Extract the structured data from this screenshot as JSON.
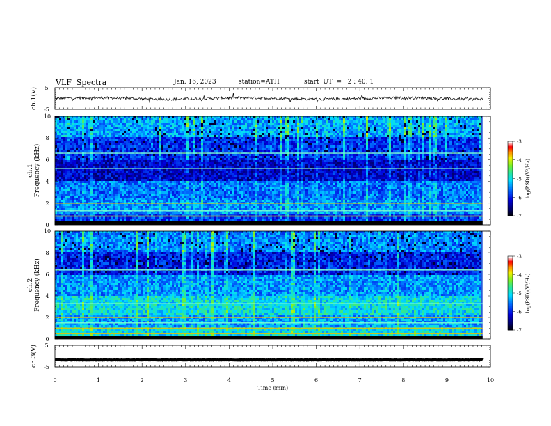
{
  "header": {
    "title": "VLF  Spectra",
    "date": "Jan. 16, 2023",
    "station": "station=ATH",
    "start": "start  UT  =   2 : 40: 1"
  },
  "chart_data": {
    "type": "heatmap",
    "xlabel": "Time  (min)",
    "xlim": [
      0,
      10
    ],
    "xticks": [
      "0",
      "1",
      "2",
      "3",
      "4",
      "5",
      "6",
      "7",
      "8",
      "9",
      "10"
    ],
    "data_end_min": 9.82,
    "panels": [
      {
        "id": "ch1-waveform",
        "type": "line",
        "ylabel": "ch.1(V)",
        "ylim": [
          -5,
          5
        ],
        "yticks": [
          "5",
          "-5"
        ],
        "baseline_v": 0.0,
        "noise_v": 0.6
      },
      {
        "id": "ch1-spectrogram",
        "type": "heatmap",
        "ylabel": "ch.1\nFrequency  (kHz)",
        "ylim": [
          0,
          10
        ],
        "yticks": [
          "0",
          "2",
          "4",
          "6",
          "8",
          "10"
        ],
        "bands_khz": [
          0.3,
          0.8,
          1.3,
          2.0,
          5.2,
          6.6
        ],
        "colorbar": {
          "label": "log(PSD)(V²/Hz)",
          "range": [
            -7,
            -3
          ],
          "ticks": [
            "-3",
            "-4",
            "-5",
            "-6",
            "-7"
          ]
        }
      },
      {
        "id": "ch2-spectrogram",
        "type": "heatmap",
        "ylabel": "ch.2\nFrequency  (kHz)",
        "ylim": [
          0,
          10
        ],
        "yticks": [
          "0",
          "2",
          "4",
          "6",
          "8",
          "10"
        ],
        "bands_khz": [
          0.5,
          1.0,
          1.5,
          2.0,
          3.3,
          6.4
        ],
        "colorbar": {
          "label": "log(PSD)(V²/Hz)",
          "range": [
            -7,
            -3
          ],
          "ticks": [
            "-3",
            "-4",
            "-5",
            "-6",
            "-7"
          ]
        }
      },
      {
        "id": "ch3-waveform",
        "type": "line",
        "ylabel": "ch.3(V)",
        "ylim": [
          -5,
          5
        ],
        "yticks": [
          "5",
          "-5"
        ],
        "baseline_v": -1.8,
        "noise_v": 0.1
      }
    ]
  }
}
